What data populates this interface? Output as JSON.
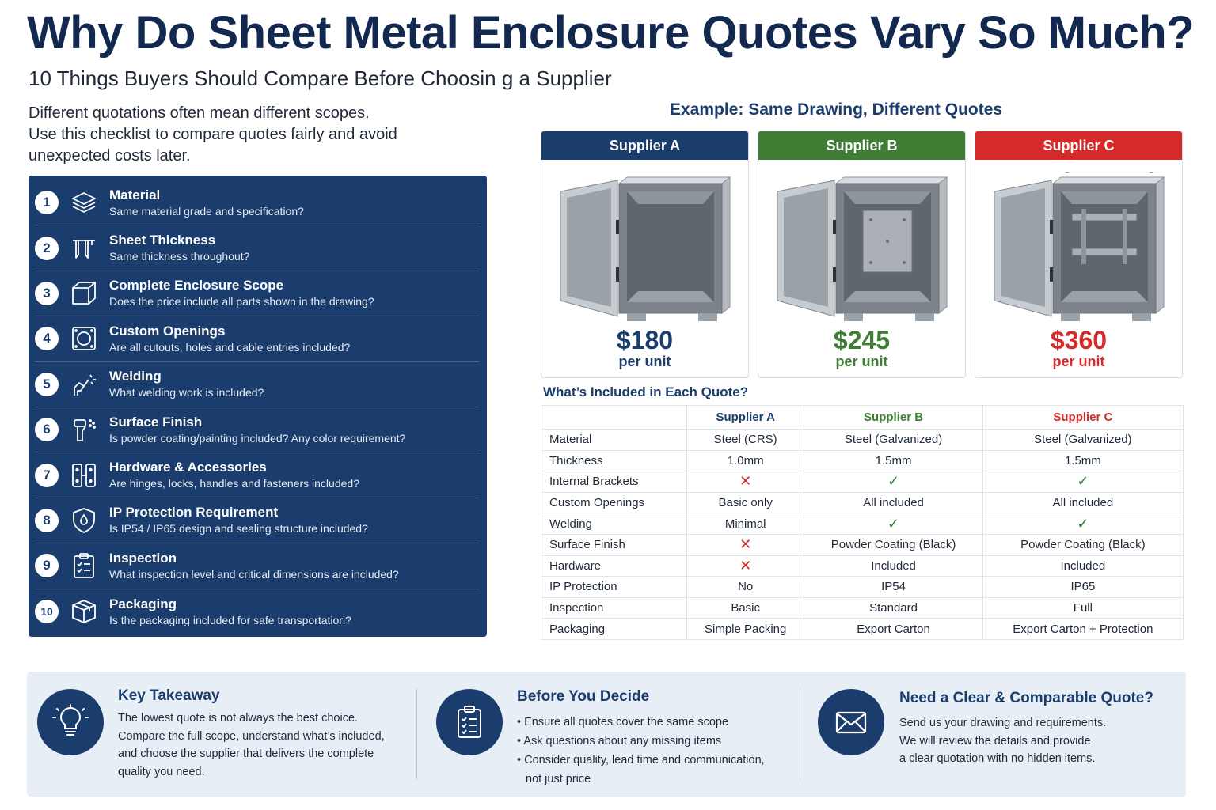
{
  "header": {
    "title": "Why Do Sheet Metal Enclosure Quotes Vary So Much?",
    "subtitle": "10 Things Buyers Should Compare Before Choosin g a Supplier",
    "intro_lines": [
      "Different quotations often mean different scopes.",
      "Use this checklist to compare quotes fairly and avoid",
      "unexpected costs later."
    ]
  },
  "checklist": [
    {
      "num": "1",
      "icon": "layers-icon",
      "title": "Material",
      "desc": "Same material grade and specification?"
    },
    {
      "num": "2",
      "icon": "caliper-icon",
      "title": "Sheet Thickness",
      "desc": "Same thickness throughout?"
    },
    {
      "num": "3",
      "icon": "cube-icon",
      "title": "Complete Enclosure Scope",
      "desc": "Does the price include all parts shown in the drawing?"
    },
    {
      "num": "4",
      "icon": "cutout-icon",
      "title": "Custom Openings",
      "desc": "Are all cutouts, holes and cable entries included?"
    },
    {
      "num": "5",
      "icon": "welding-torch-icon",
      "title": "Welding",
      "desc": "What welding work is included?"
    },
    {
      "num": "6",
      "icon": "spray-gun-icon",
      "title": "Surface Finish",
      "desc": "Is powder coating/painting included? Any color requirement?"
    },
    {
      "num": "7",
      "icon": "hinge-icon",
      "title": "Hardware & Accessories",
      "desc": "Are hinges, locks, handles and fasteners included?"
    },
    {
      "num": "8",
      "icon": "shield-drop-icon",
      "title": "IP Protection Requirement",
      "desc": "Is IP54 / IP65 design and sealing structure included?"
    },
    {
      "num": "9",
      "icon": "clipboard-check-icon",
      "title": "Inspection",
      "desc": "What inspection level and critical dimensions are included?"
    },
    {
      "num": "10",
      "icon": "box-icon",
      "title": "Packaging",
      "desc": "Is the packaging included for safe transportatiori?"
    }
  ],
  "example": {
    "title": "Example: Same Drawing, Different Quotes",
    "suppliers": [
      {
        "name": "Supplier A",
        "price": "$180",
        "per": "per unit",
        "color": "#1b3d6d"
      },
      {
        "name": "Supplier B",
        "price": "$245",
        "per": "per unit",
        "color": "#3f7d35"
      },
      {
        "name": "Supplier C",
        "price": "$360",
        "per": "per unit",
        "color": "#d42a2a"
      }
    ]
  },
  "included": {
    "title": "What’s Included in Each Quote?",
    "headers": [
      "",
      "Supplier A",
      "Supplier B",
      "Supplier C"
    ],
    "rows": [
      {
        "label": "Material",
        "values": [
          "Steel (CRS)",
          "Steel (Galvanized)",
          "Steel (Galvanized)"
        ]
      },
      {
        "label": "Thickness",
        "values": [
          "1.0mm",
          "1.5mm",
          "1.5mm"
        ]
      },
      {
        "label": "Internal Brackets",
        "values": [
          "✕",
          "✓",
          "✓"
        ]
      },
      {
        "label": "Custom Openings",
        "values": [
          "Basic only",
          "All included",
          "All included"
        ]
      },
      {
        "label": "Welding",
        "values": [
          "Minimal",
          "✓",
          "✓"
        ]
      },
      {
        "label": "Surface Finish",
        "values": [
          "✕",
          "Powder Coating (Black)",
          "Powder Coating (Black)"
        ]
      },
      {
        "label": "Hardware",
        "values": [
          "✕",
          "Included",
          "Included"
        ]
      },
      {
        "label": "IP Protection",
        "values": [
          "No",
          "IP54",
          "IP65"
        ]
      },
      {
        "label": "Inspection",
        "values": [
          "Basic",
          "Standard",
          "Full"
        ]
      },
      {
        "label": "Packaging",
        "values": [
          "Simple Packing",
          "Export Carton",
          "Export Carton + Protection"
        ]
      }
    ]
  },
  "bottom": {
    "takeaway": {
      "icon": "lightbulb-icon",
      "title": "Key Takeaway",
      "lines": [
        "The lowest quote is not always the best choice.",
        "Compare the full scope, understand what’s included,",
        "and choose the supplier that delivers the complete",
        "quality you need."
      ]
    },
    "decide": {
      "icon": "clipboard-icon",
      "title": "Before You Decide",
      "items": [
        {
          "text": "Ensure all quotes cover the same scope",
          "cont": ""
        },
        {
          "text": "Ask questions about any missing items",
          "cont": ""
        },
        {
          "text": "Consider quality, lead time and communication,",
          "cont": "not just price"
        }
      ]
    },
    "contact": {
      "icon": "envelope-icon",
      "title": "Need a Clear & Comparable Quote?",
      "lines": [
        "Send us your drawing and requirements.",
        "We will review the details and provide",
        "a clear quotation with no hidden items."
      ]
    }
  }
}
